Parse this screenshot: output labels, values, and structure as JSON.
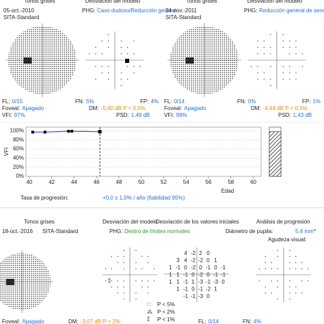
{
  "headers": [
    "Tonos grises",
    "Desviación del modelo"
  ],
  "exams": [
    {
      "date": "05-oct.-2010",
      "phg_key": "PHG:",
      "phg": "Caso dudoso/Reducción general",
      "strategy": "SITA-Standard",
      "stats": [
        [
          "FL:",
          "0/15"
        ],
        [
          "FN:",
          "5%"
        ],
        [
          "FP:",
          "4%"
        ],
        [
          "Foveal:",
          "Apagado"
        ],
        [
          "DM:",
          "-5,40 dB P < 0,5%"
        ],
        [
          "VFI:",
          "97%"
        ],
        [
          "PSD:",
          "1,49 dB"
        ]
      ]
    },
    {
      "date": "24-nov.-2011",
      "phg_key": "PHG:",
      "phg": "Reducción general de sensibilidad",
      "strategy": "SITA-Standard",
      "stats": [
        [
          "FL:",
          "0/14"
        ],
        [
          "FN:",
          "0%"
        ],
        [
          "FP:",
          "1%"
        ],
        [
          "Foveal:",
          "Apagado"
        ],
        [
          "DM:",
          "-4,44 dB P < 0,5%"
        ],
        [
          "VFI:",
          "99%"
        ],
        [
          "PSD:",
          "1,43 dB"
        ]
      ]
    }
  ],
  "chart_data": {
    "type": "line",
    "ylabel": "VFI",
    "xlabel": "Edad",
    "x": [
      40.3,
      41.4,
      43.5,
      43.8,
      46.3
    ],
    "values": [
      97,
      97,
      99,
      99,
      98
    ],
    "color": "#3355cc",
    "xlim": [
      39.7,
      60.7
    ],
    "ylim": [
      0,
      108
    ],
    "xticks": [
      40,
      42,
      44,
      46,
      48,
      50,
      52,
      54,
      56,
      58,
      60
    ],
    "yticks": [
      {
        "value": 0,
        "label": "0%"
      },
      {
        "value": 20,
        "label": "20%"
      },
      {
        "value": 40,
        "label": "40%"
      },
      {
        "value": 60,
        "label": "60%"
      },
      {
        "value": 80,
        "label": "80%"
      },
      {
        "value": 100,
        "label": "100%"
      }
    ],
    "bar_value": 98,
    "rate_label": "Tasa de progresión:",
    "rate": "+0,0 ± 1,0% / año (fiabilidad 95%)"
  },
  "bottom": {
    "headers": [
      "Tonos grises",
      "Desviación del modelo",
      "Desviación de los valores iniciales",
      "Análisis de progresión"
    ],
    "date": "18-oct.-2016",
    "strategy": "SITA-Standard",
    "phg_key": "PHG:",
    "phg": "Dentro de límites normales",
    "pupil_key": "Diámetro de pupila:",
    "pupil": "5,4 mm",
    "pupil_mark": "*",
    "acuity_key": "Agudeza visual:",
    "legend": [
      "P < 5%",
      "P < 2%",
      "P < 1%"
    ],
    "baseline_rows": [
      [
        4,
        -2,
        2,
        0
      ],
      [
        3,
        4,
        -2,
        -2,
        0,
        1
      ],
      [
        1,
        -1,
        0,
        -2,
        0,
        -1,
        0,
        -1
      ],
      [
        1,
        1,
        -1,
        0,
        -2,
        0,
        -1,
        -1
      ],
      [
        1,
        1,
        -1,
        1,
        -3,
        -1,
        -3,
        0
      ],
      [
        1,
        -1,
        0,
        -1,
        -2,
        1
      ],
      [
        -1,
        -1,
        -3,
        0
      ]
    ],
    "stats": [
      [
        "Foveal:",
        "Apagado"
      ],
      [
        "DM:",
        "-3,07 dB P < 2%"
      ],
      [
        "FL:",
        "0/14"
      ],
      [
        "FN:",
        "4%"
      ]
    ]
  }
}
